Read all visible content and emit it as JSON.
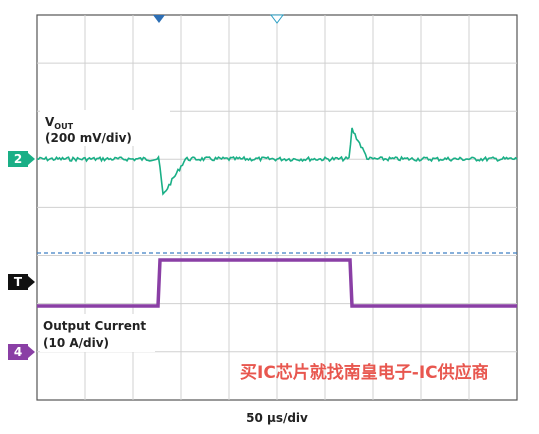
{
  "traces": [
    {
      "marker": "2",
      "name": "V",
      "name_sub": "OUT",
      "scale": "(200 mV/div)"
    },
    {
      "marker": "4",
      "name": "Output Current",
      "scale": "(10 A/div)"
    }
  ],
  "trigger_marker": "T",
  "timebase": "50 µs/div",
  "watermark": "买IC芯片就找南皇电子-IC供应商"
}
